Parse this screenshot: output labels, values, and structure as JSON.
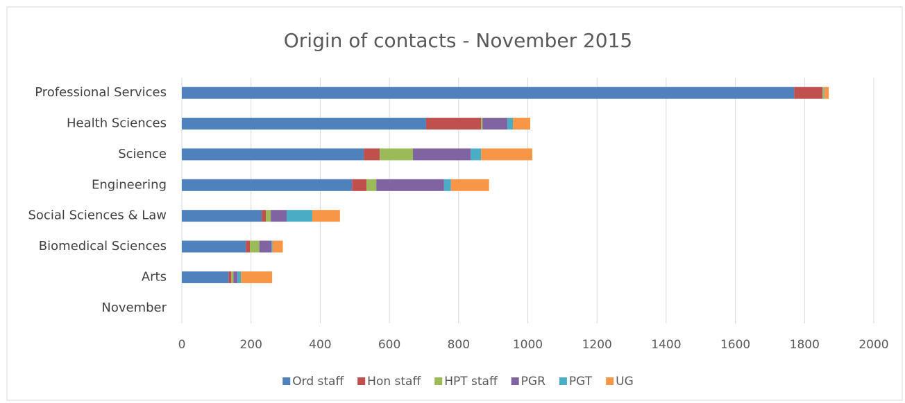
{
  "chart_data": {
    "type": "stacked_barh",
    "title": "Origin of contacts - November 2015",
    "categories": [
      "Professional Services",
      "Health Sciences",
      "Science",
      "Engineering",
      "Social Sciences & Law",
      "Biomedical Sciences",
      "Arts",
      "November"
    ],
    "series": [
      {
        "name": "Ord staff",
        "color": "#4f81bd",
        "values": [
          1770,
          706,
          526,
          492,
          231,
          185,
          135,
          0
        ]
      },
      {
        "name": "Hon staff",
        "color": "#c0504d",
        "values": [
          82,
          159,
          46,
          42,
          12,
          12,
          8,
          0
        ]
      },
      {
        "name": "HPT staff",
        "color": "#9bbb59",
        "values": [
          4,
          4,
          96,
          28,
          14,
          27,
          6,
          0
        ]
      },
      {
        "name": "PGR",
        "color": "#8064a2",
        "values": [
          1,
          72,
          167,
          196,
          46,
          35,
          12,
          0
        ]
      },
      {
        "name": "PGT",
        "color": "#4bacc6",
        "values": [
          1,
          16,
          30,
          20,
          74,
          3,
          10,
          0
        ]
      },
      {
        "name": "UG",
        "color": "#f79646",
        "values": [
          12,
          50,
          148,
          110,
          80,
          30,
          90,
          0
        ]
      }
    ],
    "xlim": [
      0,
      2000
    ],
    "xticks": [
      0,
      200,
      400,
      600,
      800,
      1000,
      1200,
      1400,
      1600,
      1800,
      2000
    ],
    "grid": true,
    "legend": "bottom"
  }
}
